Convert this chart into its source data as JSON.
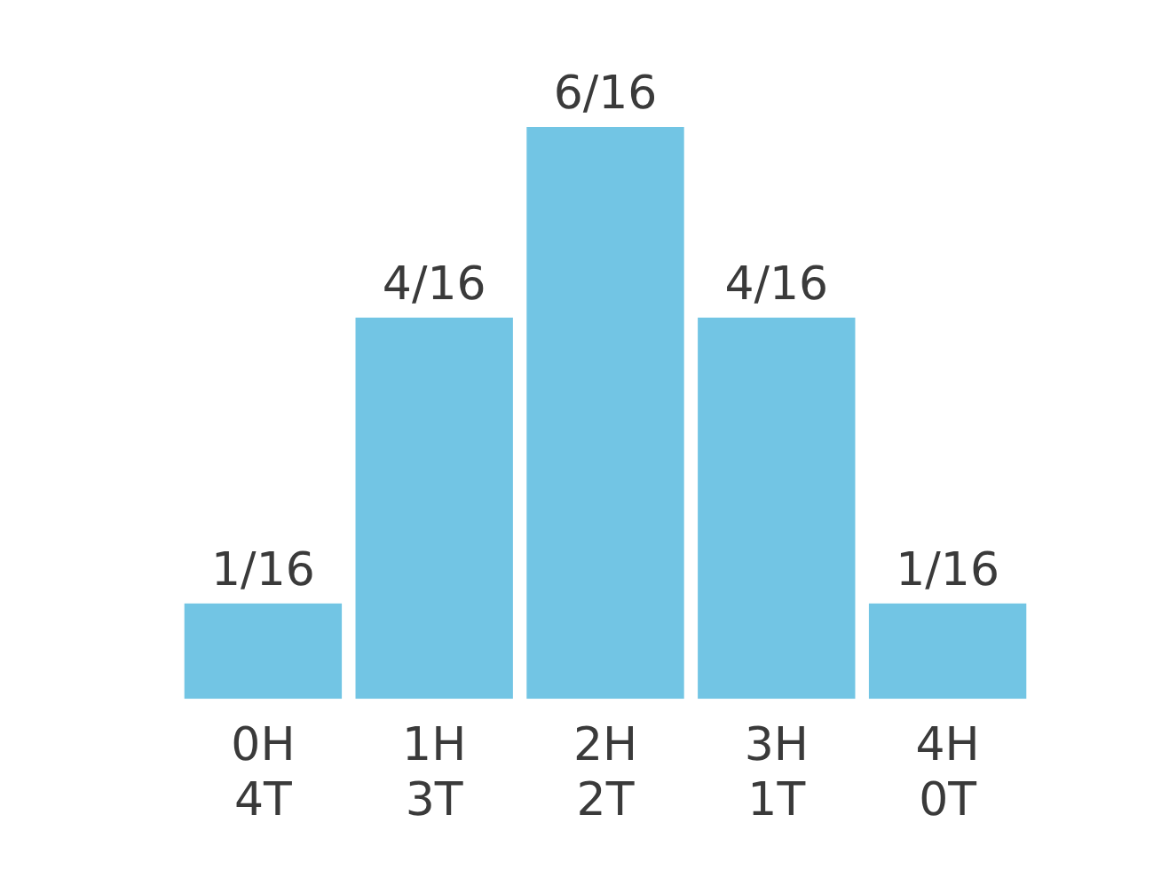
{
  "chart_data": {
    "type": "bar",
    "categories": [
      "0H\n4T",
      "1H\n3T",
      "2H\n2T",
      "3H\n1T",
      "4H\n0T"
    ],
    "values": [
      0.0625,
      0.25,
      0.375,
      0.25,
      0.0625
    ],
    "value_labels": [
      "1/16",
      "4/16",
      "6/16",
      "4/16",
      "1/16"
    ],
    "color": "#72c5e4",
    "grid": false,
    "legend": false
  }
}
